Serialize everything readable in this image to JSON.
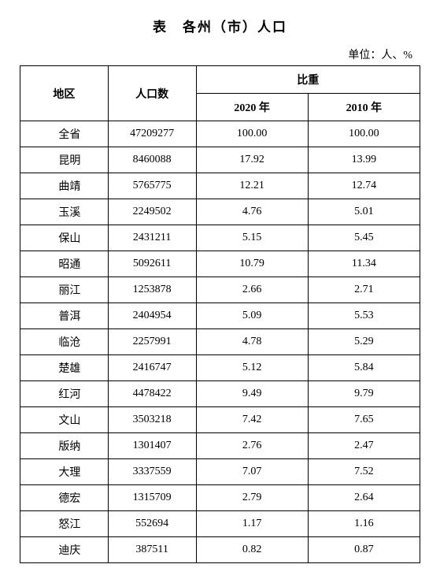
{
  "title": "表　各州（市）人口",
  "unit": "单位：人、%",
  "columns": {
    "region": "地区",
    "population": "人口数",
    "ratio_group": "比重",
    "year2020": "2020 年",
    "year2010": "2010 年"
  },
  "rows": [
    {
      "region": "全省",
      "population": "47209277",
      "y2020": "100.00",
      "y2010": "100.00"
    },
    {
      "region": "昆明",
      "population": "8460088",
      "y2020": "17.92",
      "y2010": "13.99"
    },
    {
      "region": "曲靖",
      "population": "5765775",
      "y2020": "12.21",
      "y2010": "12.74"
    },
    {
      "region": "玉溪",
      "population": "2249502",
      "y2020": "4.76",
      "y2010": "5.01"
    },
    {
      "region": "保山",
      "population": "2431211",
      "y2020": "5.15",
      "y2010": "5.45"
    },
    {
      "region": "昭通",
      "population": "5092611",
      "y2020": "10.79",
      "y2010": "11.34"
    },
    {
      "region": "丽江",
      "population": "1253878",
      "y2020": "2.66",
      "y2010": "2.71"
    },
    {
      "region": "普洱",
      "population": "2404954",
      "y2020": "5.09",
      "y2010": "5.53"
    },
    {
      "region": "临沧",
      "population": "2257991",
      "y2020": "4.78",
      "y2010": "5.29"
    },
    {
      "region": "楚雄",
      "population": "2416747",
      "y2020": "5.12",
      "y2010": "5.84"
    },
    {
      "region": "红河",
      "population": "4478422",
      "y2020": "9.49",
      "y2010": "9.79"
    },
    {
      "region": "文山",
      "population": "3503218",
      "y2020": "7.42",
      "y2010": "7.65"
    },
    {
      "region": "版纳",
      "population": "1301407",
      "y2020": "2.76",
      "y2010": "2.47"
    },
    {
      "region": "大理",
      "population": "3337559",
      "y2020": "7.07",
      "y2010": "7.52"
    },
    {
      "region": "德宏",
      "population": "1315709",
      "y2020": "2.79",
      "y2010": "2.64"
    },
    {
      "region": "怒江",
      "population": "552694",
      "y2020": "1.17",
      "y2010": "1.16"
    },
    {
      "region": "迪庆",
      "population": "387511",
      "y2020": "0.82",
      "y2010": "0.87"
    }
  ],
  "styling": {
    "font_family": "SimSun",
    "title_fontsize": 17,
    "body_fontsize": 14,
    "border_color": "#000000",
    "background_color": "#ffffff",
    "text_color": "#000000",
    "column_widths_pct": [
      22,
      22,
      28,
      28
    ]
  }
}
